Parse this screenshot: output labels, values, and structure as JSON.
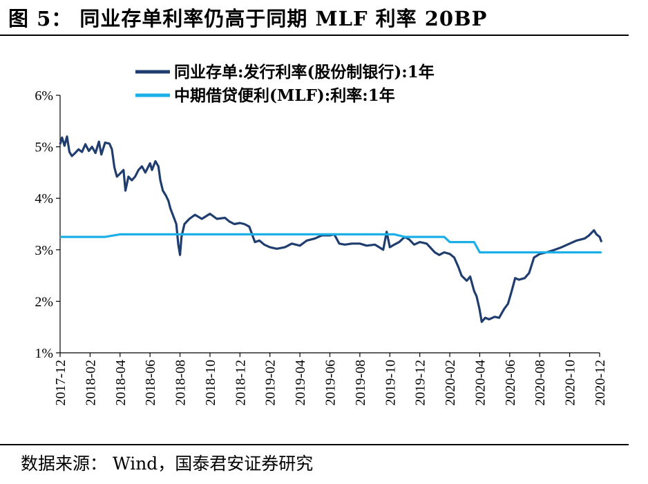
{
  "header": {
    "title": "图 5：  同业存单利率仍高于同期 MLF 利率 20BP"
  },
  "footer": {
    "source": "数据来源：  Wind，国泰君安证券研究"
  },
  "chart_data": {
    "type": "line",
    "title": "图 5：  同业存单利率仍高于同期 MLF 利率 20BP",
    "xlabel": "",
    "ylabel": "",
    "x_range": [
      "2017-12",
      "2020-12"
    ],
    "ylim": [
      1,
      6
    ],
    "y_ticks": [
      "1%",
      "2%",
      "3%",
      "4%",
      "5%",
      "6%"
    ],
    "x_ticks": [
      "2017-12",
      "2018-02",
      "2018-04",
      "2018-06",
      "2018-08",
      "2018-10",
      "2018-12",
      "2019-02",
      "2019-04",
      "2019-06",
      "2019-08",
      "2019-10",
      "2019-12",
      "2020-02",
      "2020-04",
      "2020-06",
      "2020-08",
      "2020-10",
      "2020-12"
    ],
    "grid": false,
    "legend": "top",
    "series": [
      {
        "name": "同业存单:发行利率(股份制银行):1年",
        "color": "#1F3D6E",
        "points": [
          [
            "2017-12-01",
            5.05
          ],
          [
            "2017-12-05",
            5.18
          ],
          [
            "2017-12-10",
            5.02
          ],
          [
            "2017-12-15",
            5.2
          ],
          [
            "2017-12-20",
            4.9
          ],
          [
            "2017-12-25",
            4.82
          ],
          [
            "2018-01-01",
            4.88
          ],
          [
            "2018-01-08",
            4.95
          ],
          [
            "2018-01-15",
            4.9
          ],
          [
            "2018-01-22",
            5.05
          ],
          [
            "2018-01-29",
            4.92
          ],
          [
            "2018-02-05",
            5.0
          ],
          [
            "2018-02-12",
            4.88
          ],
          [
            "2018-02-19",
            5.1
          ],
          [
            "2018-02-24",
            4.85
          ],
          [
            "2018-03-01",
            5.08
          ],
          [
            "2018-03-10",
            5.06
          ],
          [
            "2018-03-15",
            4.95
          ],
          [
            "2018-03-20",
            4.6
          ],
          [
            "2018-03-25",
            4.42
          ],
          [
            "2018-04-01",
            4.48
          ],
          [
            "2018-04-08",
            4.55
          ],
          [
            "2018-04-12",
            4.15
          ],
          [
            "2018-04-18",
            4.42
          ],
          [
            "2018-04-25",
            4.35
          ],
          [
            "2018-05-01",
            4.42
          ],
          [
            "2018-05-08",
            4.55
          ],
          [
            "2018-05-15",
            4.62
          ],
          [
            "2018-05-22",
            4.5
          ],
          [
            "2018-06-01",
            4.68
          ],
          [
            "2018-06-05",
            4.55
          ],
          [
            "2018-06-12",
            4.72
          ],
          [
            "2018-06-18",
            4.62
          ],
          [
            "2018-06-22",
            4.35
          ],
          [
            "2018-06-27",
            4.15
          ],
          [
            "2018-07-03",
            4.05
          ],
          [
            "2018-07-08",
            3.95
          ],
          [
            "2018-07-12",
            3.8
          ],
          [
            "2018-07-18",
            3.65
          ],
          [
            "2018-07-24",
            3.5
          ],
          [
            "2018-07-28",
            3.1
          ],
          [
            "2018-08-01",
            2.9
          ],
          [
            "2018-08-04",
            3.25
          ],
          [
            "2018-08-10",
            3.5
          ],
          [
            "2018-08-20",
            3.6
          ],
          [
            "2018-09-01",
            3.68
          ],
          [
            "2018-09-15",
            3.6
          ],
          [
            "2018-10-01",
            3.7
          ],
          [
            "2018-10-15",
            3.6
          ],
          [
            "2018-11-01",
            3.62
          ],
          [
            "2018-11-10",
            3.55
          ],
          [
            "2018-11-20",
            3.5
          ],
          [
            "2018-12-01",
            3.52
          ],
          [
            "2018-12-10",
            3.5
          ],
          [
            "2018-12-20",
            3.45
          ],
          [
            "2019-01-01",
            3.15
          ],
          [
            "2019-01-10",
            3.18
          ],
          [
            "2019-01-20",
            3.1
          ],
          [
            "2019-02-01",
            3.05
          ],
          [
            "2019-02-15",
            3.02
          ],
          [
            "2019-03-01",
            3.05
          ],
          [
            "2019-03-15",
            3.12
          ],
          [
            "2019-04-01",
            3.08
          ],
          [
            "2019-04-15",
            3.18
          ],
          [
            "2019-05-01",
            3.22
          ],
          [
            "2019-05-15",
            3.28
          ],
          [
            "2019-06-01",
            3.28
          ],
          [
            "2019-06-10",
            3.3
          ],
          [
            "2019-06-20",
            3.12
          ],
          [
            "2019-07-01",
            3.1
          ],
          [
            "2019-07-15",
            3.12
          ],
          [
            "2019-08-01",
            3.12
          ],
          [
            "2019-08-15",
            3.08
          ],
          [
            "2019-09-01",
            3.1
          ],
          [
            "2019-09-10",
            3.05
          ],
          [
            "2019-09-18",
            3.0
          ],
          [
            "2019-09-25",
            3.35
          ],
          [
            "2019-10-01",
            3.05
          ],
          [
            "2019-10-10",
            3.1
          ],
          [
            "2019-10-20",
            3.15
          ],
          [
            "2019-11-01",
            3.25
          ],
          [
            "2019-11-10",
            3.2
          ],
          [
            "2019-11-20",
            3.1
          ],
          [
            "2019-12-01",
            3.15
          ],
          [
            "2019-12-15",
            3.12
          ],
          [
            "2020-01-01",
            2.95
          ],
          [
            "2020-01-10",
            2.9
          ],
          [
            "2020-01-20",
            2.95
          ],
          [
            "2020-02-01",
            2.92
          ],
          [
            "2020-02-10",
            2.85
          ],
          [
            "2020-02-18",
            2.68
          ],
          [
            "2020-02-25",
            2.5
          ],
          [
            "2020-03-05",
            2.4
          ],
          [
            "2020-03-12",
            2.48
          ],
          [
            "2020-03-20",
            2.2
          ],
          [
            "2020-03-25",
            2.1
          ],
          [
            "2020-03-31",
            1.85
          ],
          [
            "2020-04-05",
            1.6
          ],
          [
            "2020-04-12",
            1.68
          ],
          [
            "2020-04-20",
            1.65
          ],
          [
            "2020-05-01",
            1.7
          ],
          [
            "2020-05-10",
            1.68
          ],
          [
            "2020-05-20",
            1.85
          ],
          [
            "2020-05-28",
            1.95
          ],
          [
            "2020-06-05",
            2.2
          ],
          [
            "2020-06-12",
            2.45
          ],
          [
            "2020-06-20",
            2.42
          ],
          [
            "2020-07-01",
            2.45
          ],
          [
            "2020-07-10",
            2.55
          ],
          [
            "2020-07-20",
            2.85
          ],
          [
            "2020-08-01",
            2.92
          ],
          [
            "2020-08-15",
            2.95
          ],
          [
            "2020-09-01",
            3.0
          ],
          [
            "2020-09-15",
            3.05
          ],
          [
            "2020-10-01",
            3.12
          ],
          [
            "2020-10-15",
            3.18
          ],
          [
            "2020-11-01",
            3.22
          ],
          [
            "2020-11-10",
            3.28
          ],
          [
            "2020-11-20",
            3.38
          ],
          [
            "2020-11-25",
            3.3
          ],
          [
            "2020-12-01",
            3.25
          ],
          [
            "2020-12-05",
            3.15
          ]
        ]
      },
      {
        "name": "中期借贷便利(MLF):利率:1年",
        "color": "#1BAFE8",
        "points": [
          [
            "2017-12-01",
            3.25
          ],
          [
            "2018-03-01",
            3.25
          ],
          [
            "2018-04-01",
            3.3
          ],
          [
            "2019-10-01",
            3.3
          ],
          [
            "2019-10-10",
            3.3
          ],
          [
            "2019-11-01",
            3.25
          ],
          [
            "2020-01-20",
            3.25
          ],
          [
            "2020-02-01",
            3.15
          ],
          [
            "2020-03-20",
            3.15
          ],
          [
            "2020-04-01",
            2.95
          ],
          [
            "2020-12-05",
            2.95
          ]
        ]
      }
    ]
  }
}
